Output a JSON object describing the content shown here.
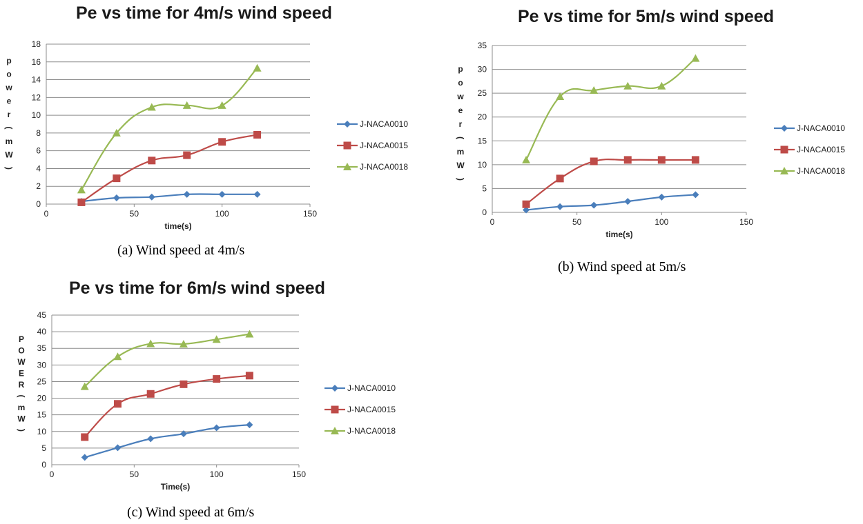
{
  "chart_data": [
    {
      "type": "line",
      "panel_caption": "(a) Wind speed at 4m/s",
      "title": "Pe vs time for 4m/s wind speed",
      "xlabel": "time(s)",
      "ylabel_chars": [
        "p",
        "o",
        "w",
        "e",
        "r",
        "(",
        "m",
        "W",
        ")"
      ],
      "xlim": [
        0,
        150
      ],
      "xticks": [
        0,
        50,
        100,
        150
      ],
      "ylim": [
        0,
        18
      ],
      "yticks": [
        0,
        2,
        4,
        6,
        8,
        10,
        12,
        14,
        16,
        18
      ],
      "grid": "horizontal",
      "legend_position": "right",
      "series": [
        {
          "name": "J-NACA0010",
          "marker": "diamond",
          "color": "#4a7ebb",
          "x": [
            20,
            40,
            60,
            80,
            100,
            120
          ],
          "y": [
            0.3,
            0.7,
            0.8,
            1.1,
            1.1,
            1.1
          ]
        },
        {
          "name": "J-NACA0015",
          "marker": "square",
          "color": "#be4b48",
          "x": [
            20,
            40,
            60,
            80,
            100,
            120
          ],
          "y": [
            0.2,
            2.9,
            4.9,
            5.5,
            7.0,
            7.8
          ]
        },
        {
          "name": "J-NACA0018",
          "marker": "triangle",
          "color": "#98b954",
          "x": [
            20,
            40,
            60,
            80,
            100,
            120
          ],
          "y": [
            1.6,
            8.0,
            10.9,
            11.1,
            11.1,
            15.3
          ]
        }
      ]
    },
    {
      "type": "line",
      "panel_caption": "(b) Wind speed at 5m/s",
      "title": "Pe vs time for 5m/s wind speed",
      "xlabel": "time(s)",
      "ylabel_chars": [
        "p",
        "o",
        "w",
        "e",
        "r",
        "(",
        "m",
        "W",
        ")"
      ],
      "xlim": [
        0,
        150
      ],
      "xticks": [
        0,
        50,
        100,
        150
      ],
      "ylim": [
        0,
        35
      ],
      "yticks": [
        0,
        5,
        10,
        15,
        20,
        25,
        30,
        35
      ],
      "grid": "horizontal",
      "legend_position": "right",
      "series": [
        {
          "name": "J-NACA0010",
          "marker": "diamond",
          "color": "#4a7ebb",
          "x": [
            20,
            40,
            60,
            80,
            100,
            120
          ],
          "y": [
            0.5,
            1.2,
            1.5,
            2.3,
            3.2,
            3.7
          ]
        },
        {
          "name": "J-NACA0015",
          "marker": "square",
          "color": "#be4b48",
          "x": [
            20,
            40,
            60,
            80,
            100,
            120
          ],
          "y": [
            1.7,
            7.1,
            10.7,
            11.0,
            11.0,
            11.0
          ]
        },
        {
          "name": "J-NACA0018",
          "marker": "triangle",
          "color": "#98b954",
          "x": [
            20,
            40,
            60,
            80,
            100,
            120
          ],
          "y": [
            11.0,
            24.3,
            25.6,
            26.5,
            26.5,
            32.3
          ]
        }
      ]
    },
    {
      "type": "line",
      "panel_caption": "(c) Wind speed at 6m/s",
      "title": "Pe vs time for 6m/s wind speed",
      "xlabel": "Time(s)",
      "ylabel_chars": [
        "P",
        "O",
        "W",
        "E",
        "R",
        "(",
        "m",
        "W",
        ")"
      ],
      "xlim": [
        0,
        150
      ],
      "xticks": [
        0,
        50,
        100,
        150
      ],
      "ylim": [
        0,
        45
      ],
      "yticks": [
        0,
        5,
        10,
        15,
        20,
        25,
        30,
        35,
        40,
        45
      ],
      "grid": "horizontal",
      "legend_position": "right",
      "series": [
        {
          "name": "J-NACA0010",
          "marker": "diamond",
          "color": "#4a7ebb",
          "x": [
            20,
            40,
            60,
            80,
            100,
            120
          ],
          "y": [
            2.2,
            5.1,
            7.8,
            9.3,
            11.1,
            12.0
          ]
        },
        {
          "name": "J-NACA0015",
          "marker": "square",
          "color": "#be4b48",
          "x": [
            20,
            40,
            60,
            80,
            100,
            120
          ],
          "y": [
            8.3,
            18.3,
            21.3,
            24.2,
            25.8,
            26.8
          ]
        },
        {
          "name": "J-NACA0018",
          "marker": "triangle",
          "color": "#98b954",
          "x": [
            20,
            40,
            60,
            80,
            100,
            120
          ],
          "y": [
            23.5,
            32.5,
            36.4,
            36.3,
            37.7,
            39.3
          ]
        }
      ]
    }
  ]
}
